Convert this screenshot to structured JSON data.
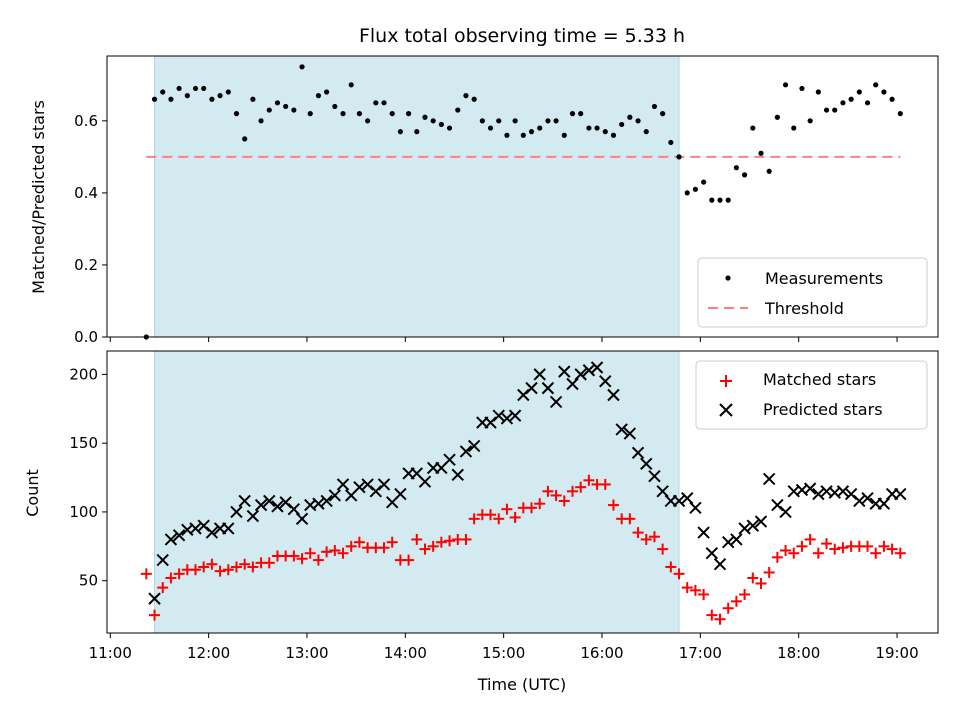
{
  "chart_data": [
    {
      "type": "scatter",
      "title": "Flux total observing time = 5.33 h",
      "xlabel": "",
      "ylabel": "Matched/Predicted stars",
      "xlim": [
        "10:58",
        "19:25"
      ],
      "ylim": [
        0,
        0.78
      ],
      "yticks": [
        0.0,
        0.2,
        0.4,
        0.6
      ],
      "ytick_labels": [
        "0.0",
        "0.2",
        "0.4",
        "0.6"
      ],
      "shaded_interval": [
        "11:27",
        "16:47"
      ],
      "shaded_color": "#d3eaf0",
      "legend_position": "lower right",
      "series": [
        {
          "name": "Measurements",
          "marker": "dot",
          "color": "#000000",
          "x": [
            "11:22",
            "11:27",
            "11:32",
            "11:37",
            "11:42",
            "11:47",
            "11:52",
            "11:57",
            "12:02",
            "12:07",
            "12:12",
            "12:17",
            "12:22",
            "12:27",
            "12:32",
            "12:37",
            "12:42",
            "12:47",
            "12:52",
            "12:57",
            "13:02",
            "13:07",
            "13:12",
            "13:17",
            "13:22",
            "13:27",
            "13:32",
            "13:37",
            "13:42",
            "13:47",
            "13:52",
            "13:57",
            "14:02",
            "14:07",
            "14:12",
            "14:17",
            "14:22",
            "14:27",
            "14:32",
            "14:37",
            "14:42",
            "14:47",
            "14:52",
            "14:57",
            "15:02",
            "15:07",
            "15:12",
            "15:17",
            "15:22",
            "15:27",
            "15:32",
            "15:37",
            "15:42",
            "15:47",
            "15:52",
            "15:57",
            "16:02",
            "16:07",
            "16:12",
            "16:17",
            "16:22",
            "16:27",
            "16:32",
            "16:37",
            "16:42",
            "16:47",
            "16:52",
            "16:57",
            "17:02",
            "17:07",
            "17:12",
            "17:17",
            "17:22",
            "17:27",
            "17:32",
            "17:37",
            "17:42",
            "17:47",
            "17:52",
            "17:57",
            "18:02",
            "18:07",
            "18:12",
            "18:17",
            "18:22",
            "18:27",
            "18:32",
            "18:37",
            "18:42",
            "18:47",
            "18:52",
            "18:57",
            "19:02"
          ],
          "y": [
            0.0,
            0.66,
            0.68,
            0.66,
            0.69,
            0.67,
            0.69,
            0.69,
            0.66,
            0.67,
            0.68,
            0.62,
            0.55,
            0.66,
            0.6,
            0.63,
            0.65,
            0.64,
            0.63,
            0.75,
            0.62,
            0.67,
            0.68,
            0.64,
            0.62,
            0.7,
            0.62,
            0.6,
            0.65,
            0.65,
            0.62,
            0.57,
            0.62,
            0.57,
            0.61,
            0.6,
            0.59,
            0.58,
            0.63,
            0.67,
            0.66,
            0.6,
            0.58,
            0.6,
            0.56,
            0.6,
            0.56,
            0.57,
            0.58,
            0.6,
            0.6,
            0.56,
            0.62,
            0.62,
            0.58,
            0.58,
            0.57,
            0.56,
            0.59,
            0.61,
            0.6,
            0.57,
            0.64,
            0.62,
            0.54,
            0.5,
            0.4,
            0.41,
            0.43,
            0.38,
            0.38,
            0.38,
            0.47,
            0.45,
            0.58,
            0.51,
            0.46,
            0.61,
            0.7,
            0.58,
            0.69,
            0.6,
            0.68,
            0.63,
            0.63,
            0.65,
            0.66,
            0.68,
            0.65,
            0.7,
            0.68,
            0.66,
            0.62
          ]
        },
        {
          "name": "Threshold",
          "type": "line",
          "style": "dashed",
          "color": "#ff8080",
          "x": [
            "11:22",
            "19:02"
          ],
          "y": [
            0.5,
            0.5
          ]
        }
      ]
    },
    {
      "type": "scatter",
      "title": "",
      "xlabel": "Time (UTC)",
      "ylabel": "Count",
      "xlim": [
        "10:58",
        "19:25"
      ],
      "ylim": [
        12,
        217
      ],
      "yticks": [
        50,
        100,
        150,
        200
      ],
      "xticks": [
        "11:00",
        "12:00",
        "13:00",
        "14:00",
        "15:00",
        "16:00",
        "17:00",
        "18:00",
        "19:00"
      ],
      "shaded_interval": [
        "11:27",
        "16:47"
      ],
      "shaded_color": "#d3eaf0",
      "legend_position": "upper right",
      "series": [
        {
          "name": "Matched stars",
          "marker": "plus",
          "color": "#ff0000",
          "x": [
            "11:22",
            "11:27",
            "11:32",
            "11:37",
            "11:42",
            "11:47",
            "11:52",
            "11:57",
            "12:02",
            "12:07",
            "12:12",
            "12:17",
            "12:22",
            "12:27",
            "12:32",
            "12:37",
            "12:42",
            "12:47",
            "12:52",
            "12:57",
            "13:02",
            "13:07",
            "13:12",
            "13:17",
            "13:22",
            "13:27",
            "13:32",
            "13:37",
            "13:42",
            "13:47",
            "13:52",
            "13:57",
            "14:02",
            "14:07",
            "14:12",
            "14:17",
            "14:22",
            "14:27",
            "14:32",
            "14:37",
            "14:42",
            "14:47",
            "14:52",
            "14:57",
            "15:02",
            "15:07",
            "15:12",
            "15:17",
            "15:22",
            "15:27",
            "15:32",
            "15:37",
            "15:42",
            "15:47",
            "15:52",
            "15:57",
            "16:02",
            "16:07",
            "16:12",
            "16:17",
            "16:22",
            "16:27",
            "16:32",
            "16:37",
            "16:42",
            "16:47",
            "16:52",
            "16:57",
            "17:02",
            "17:07",
            "17:12",
            "17:17",
            "17:22",
            "17:27",
            "17:32",
            "17:37",
            "17:42",
            "17:47",
            "17:52",
            "17:57",
            "18:02",
            "18:07",
            "18:12",
            "18:17",
            "18:22",
            "18:27",
            "18:32",
            "18:37",
            "18:42",
            "18:47",
            "18:52",
            "18:57",
            "19:02"
          ],
          "y": [
            55,
            25,
            45,
            52,
            55,
            58,
            58,
            60,
            62,
            57,
            58,
            60,
            62,
            60,
            63,
            63,
            68,
            68,
            68,
            66,
            70,
            65,
            71,
            72,
            70,
            75,
            78,
            74,
            74,
            74,
            78,
            65,
            65,
            80,
            73,
            75,
            78,
            79,
            80,
            80,
            95,
            98,
            98,
            95,
            102,
            96,
            103,
            103,
            106,
            115,
            112,
            108,
            115,
            118,
            123,
            120,
            120,
            105,
            95,
            95,
            85,
            80,
            82,
            73,
            60,
            55,
            45,
            43,
            40,
            25,
            22,
            30,
            35,
            40,
            52,
            48,
            56,
            67,
            72,
            70,
            75,
            80,
            70,
            77,
            73,
            74,
            75,
            75,
            75,
            70,
            75,
            73,
            70
          ]
        },
        {
          "name": "Predicted stars",
          "marker": "x",
          "color": "#000000",
          "x": [
            "11:27",
            "11:32",
            "11:37",
            "11:42",
            "11:47",
            "11:52",
            "11:57",
            "12:02",
            "12:07",
            "12:12",
            "12:17",
            "12:22",
            "12:27",
            "12:32",
            "12:37",
            "12:42",
            "12:47",
            "12:52",
            "12:57",
            "13:02",
            "13:07",
            "13:12",
            "13:17",
            "13:22",
            "13:27",
            "13:32",
            "13:37",
            "13:42",
            "13:47",
            "13:52",
            "13:57",
            "14:02",
            "14:07",
            "14:12",
            "14:17",
            "14:22",
            "14:27",
            "14:32",
            "14:37",
            "14:42",
            "14:47",
            "14:52",
            "14:57",
            "15:02",
            "15:07",
            "15:12",
            "15:17",
            "15:22",
            "15:27",
            "15:32",
            "15:37",
            "15:42",
            "15:47",
            "15:52",
            "15:57",
            "16:02",
            "16:07",
            "16:12",
            "16:17",
            "16:22",
            "16:27",
            "16:32",
            "16:37",
            "16:42",
            "16:47",
            "16:52",
            "16:57",
            "17:02",
            "17:07",
            "17:12",
            "17:17",
            "17:22",
            "17:27",
            "17:32",
            "17:37",
            "17:42",
            "17:47",
            "17:52",
            "17:57",
            "18:02",
            "18:07",
            "18:12",
            "18:17",
            "18:22",
            "18:27",
            "18:32",
            "18:37",
            "18:42",
            "18:47",
            "18:52",
            "18:57",
            "19:02"
          ],
          "y": [
            37,
            65,
            80,
            83,
            87,
            88,
            90,
            85,
            88,
            88,
            100,
            108,
            97,
            105,
            108,
            104,
            107,
            102,
            95,
            105,
            106,
            108,
            112,
            120,
            112,
            118,
            120,
            115,
            120,
            107,
            113,
            128,
            128,
            122,
            132,
            132,
            138,
            127,
            144,
            148,
            165,
            165,
            170,
            168,
            170,
            185,
            190,
            200,
            190,
            180,
            202,
            193,
            200,
            203,
            205,
            195,
            185,
            160,
            157,
            143,
            135,
            126,
            115,
            108,
            108,
            110,
            103,
            85,
            70,
            62,
            78,
            80,
            88,
            90,
            93,
            124,
            105,
            100,
            115,
            116,
            117,
            113,
            115,
            114,
            115,
            113,
            108,
            110,
            106,
            106,
            113,
            113
          ]
        }
      ]
    }
  ]
}
